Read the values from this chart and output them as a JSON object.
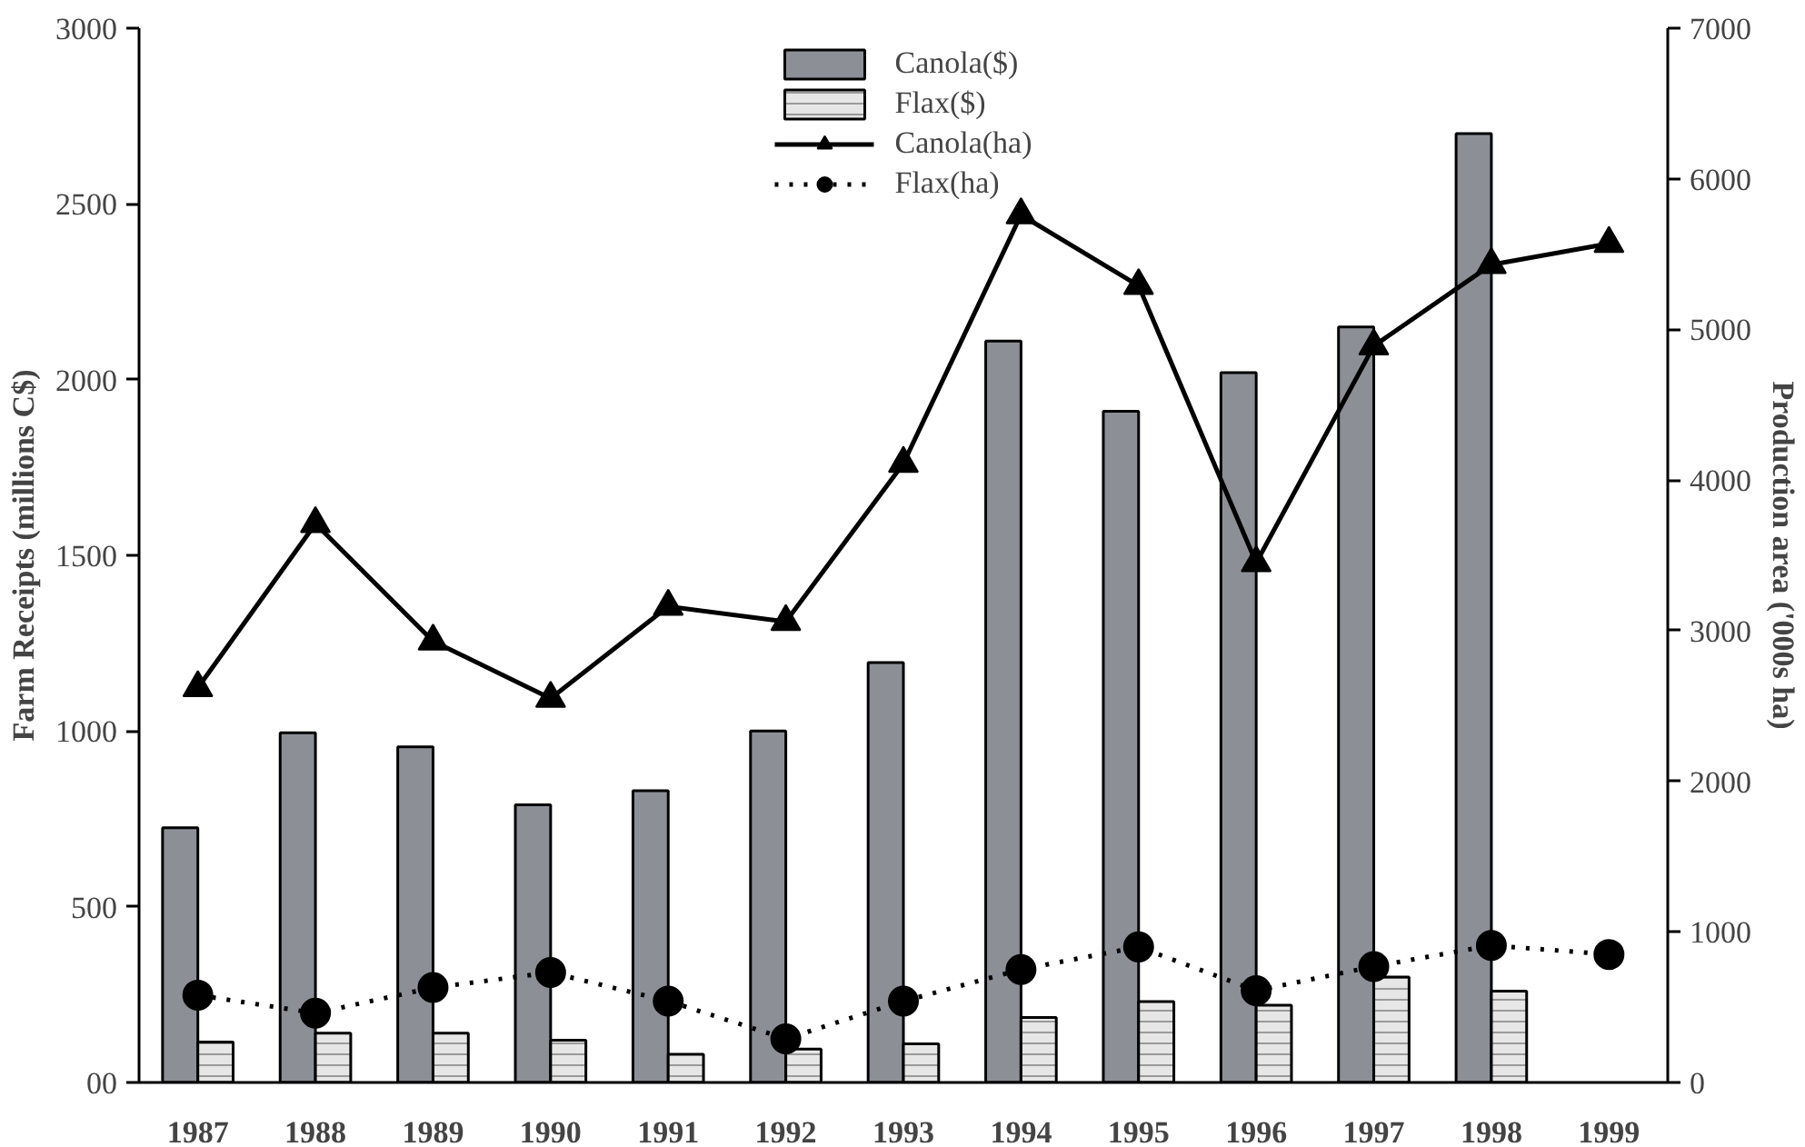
{
  "chart_data": {
    "type": "bar",
    "categories": [
      "1987",
      "1988",
      "1989",
      "1990",
      "1991",
      "1992",
      "1993",
      "1994",
      "1995",
      "1996",
      "1997",
      "1998",
      "1999"
    ],
    "ylabel": "Farm Receipts (millions C$)",
    "y2label": "Production area ('000s ha)",
    "ylim": [
      0,
      3000
    ],
    "yticks": [
      {
        "value": 0,
        "label": "00"
      },
      500,
      1000,
      1500,
      2000,
      2500,
      3000
    ],
    "y2lim": [
      0,
      7000
    ],
    "y2ticks": [
      0,
      1000,
      2000,
      3000,
      4000,
      5000,
      6000,
      7000
    ],
    "series": [
      {
        "name": "Canola($)",
        "color": "#8c9096",
        "values": [
          725,
          995,
          955,
          790,
          830,
          1000,
          1195,
          2110,
          1910,
          2020,
          2150,
          2700,
          null
        ]
      },
      {
        "name": "Flax($)",
        "color": "#e6e6e6",
        "values": [
          115,
          140,
          140,
          120,
          80,
          95,
          110,
          185,
          230,
          220,
          300,
          260,
          null
        ]
      },
      {
        "name": "Canola(ha)",
        "type": "line",
        "axis": "y2",
        "color": "#000000",
        "marker": "triangle",
        "line_style": "solid",
        "values": [
          2620,
          3710,
          2930,
          2550,
          3160,
          3060,
          4110,
          5760,
          5290,
          3450,
          4890,
          5430,
          5570
        ]
      },
      {
        "name": "Flax(ha)",
        "type": "line",
        "axis": "y2",
        "color": "#000000",
        "marker": "circle",
        "line_style": "dotted",
        "values": [
          580,
          460,
          630,
          730,
          540,
          290,
          540,
          750,
          900,
          610,
          770,
          910,
          850
        ]
      }
    ],
    "legend": "top",
    "grid": false
  }
}
